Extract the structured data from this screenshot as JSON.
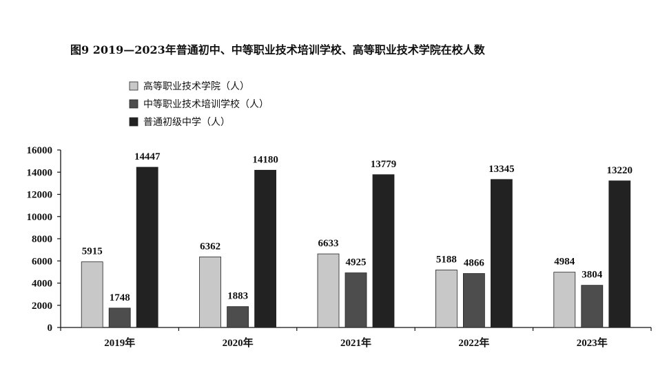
{
  "chart_data": {
    "type": "bar",
    "title": "图9  2019—2023年普通初中、中等职业技术培训学校、高等职业技术学院在校人数",
    "xlabel": "",
    "ylabel": "",
    "categories": [
      "2019年",
      "2020年",
      "2021年",
      "2022年",
      "2023年"
    ],
    "series": [
      {
        "name": "高等职业技术学院（人）",
        "color": "#c8c8c8",
        "values": [
          5915,
          6362,
          6633,
          5188,
          4984
        ]
      },
      {
        "name": "中等职业技术培训学校（人）",
        "color": "#4d4d4d",
        "values": [
          1748,
          1883,
          4925,
          4866,
          3804
        ]
      },
      {
        "name": "普通初级中学（人）",
        "color": "#222222",
        "values": [
          14447,
          14180,
          13779,
          13345,
          13220
        ]
      }
    ],
    "ylim": [
      0,
      16000
    ],
    "yticks": [
      0,
      2000,
      4000,
      6000,
      8000,
      10000,
      12000,
      14000,
      16000
    ],
    "grid": false,
    "legend": "top-left"
  }
}
